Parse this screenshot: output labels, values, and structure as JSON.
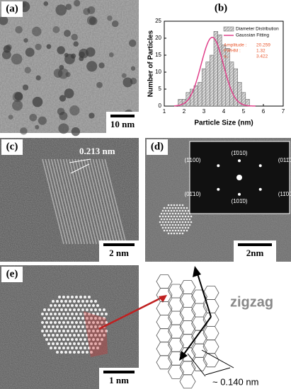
{
  "panels": {
    "a": {
      "label": "(a)",
      "scale": "10 nm"
    },
    "c": {
      "label": "(c)",
      "spacing": "0.213 nm",
      "scale": "2 nm"
    },
    "d": {
      "label": "(d)",
      "scale": "2nm",
      "fft_spots": [
        "(1̄010)",
        "(011̄0)",
        "(1̄100)",
        "(11̄00)",
        "(01̄10)",
        "(101̄0)"
      ]
    },
    "e": {
      "label": "(e)",
      "scale": "1 nm",
      "edge": "zigzag",
      "spacing": "~ 0.140 nm"
    }
  },
  "chart_data": {
    "type": "histogram",
    "title": "(b)",
    "x_label": "Particle Size (nm)",
    "y_label": "Number of Particles",
    "bins": [
      1.7,
      1.9,
      2.1,
      2.3,
      2.5,
      2.7,
      2.9,
      3.1,
      3.3,
      3.5,
      3.7,
      3.9,
      4.1,
      4.3,
      4.5,
      4.7,
      4.9,
      5.1,
      5.3
    ],
    "series": [
      {
        "name": "Diameter Distribution",
        "color": "#bdbdbd",
        "values": [
          2,
          2,
          4,
          5,
          6,
          7,
          11,
          13,
          15,
          22,
          21,
          18,
          17,
          13,
          11,
          7,
          4,
          2
        ]
      },
      {
        "name": "Gaussian Fitting",
        "color": "#e0408a"
      }
    ],
    "fit": [
      {
        "label": "Amplitude :",
        "value": 20.259
      },
      {
        "label": "FWHM :",
        "value": 1.32
      },
      {
        "label": "x₀ :",
        "value": 3.422
      }
    ],
    "xlim": [
      1,
      7
    ],
    "xticks": [
      1,
      2,
      3,
      4,
      5,
      6,
      7
    ],
    "ylim": [
      0,
      25
    ],
    "yticks": [
      0,
      5,
      10,
      15,
      20,
      25
    ]
  }
}
